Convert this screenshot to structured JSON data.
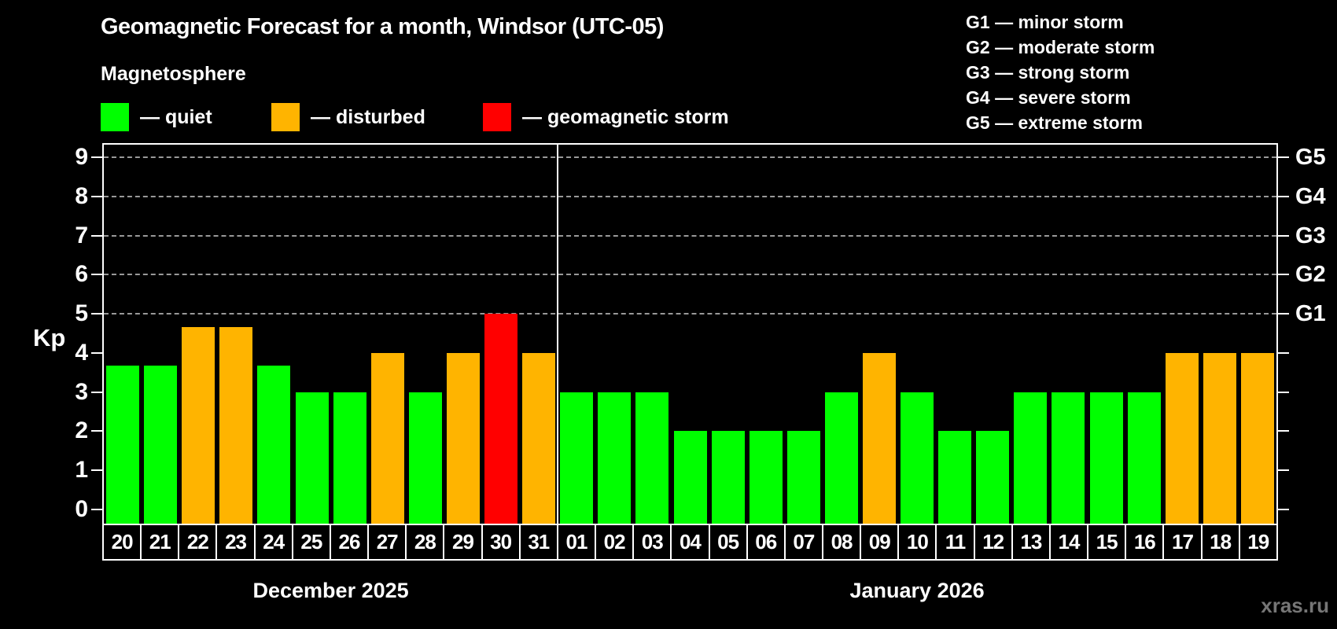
{
  "title": "Geomagnetic Forecast for a month, Windsor (UTC-05)",
  "subtitle": "Magnetosphere",
  "legend": {
    "items": [
      {
        "key": "quiet",
        "label": "— quiet",
        "color": "#00ff00"
      },
      {
        "key": "disturbed",
        "label": "— disturbed",
        "color": "#ffb400"
      },
      {
        "key": "storm",
        "label": "— geomagnetic storm",
        "color": "#ff0000"
      }
    ]
  },
  "g_legend": [
    "G1 — minor storm",
    "G2 — moderate storm",
    "G3 — strong storm",
    "G4 — severe storm",
    "G5 — extreme storm"
  ],
  "axes": {
    "y_label": "Kp",
    "y_ticks": [
      0,
      1,
      2,
      3,
      4,
      5,
      6,
      7,
      8,
      9
    ],
    "right_scale": [
      {
        "label": "G1",
        "kp": 5
      },
      {
        "label": "G2",
        "kp": 6
      },
      {
        "label": "G3",
        "kp": 7
      },
      {
        "label": "G4",
        "kp": 8
      },
      {
        "label": "G5",
        "kp": 9
      }
    ]
  },
  "watermark": "xras.ru",
  "chart_data": {
    "type": "bar",
    "title": "Geomagnetic Forecast for a month, Windsor (UTC-05)",
    "xlabel": "",
    "ylabel": "Kp",
    "ylim": [
      0,
      9
    ],
    "grid_levels": [
      5,
      6,
      7,
      8,
      9
    ],
    "legend_position": "top-left",
    "colors": {
      "quiet": "#00ff00",
      "disturbed": "#ffb400",
      "storm": "#ff0000"
    },
    "groups": [
      {
        "label": "December 2025",
        "days": [
          {
            "day": "20",
            "kp": 3.67,
            "status": "quiet"
          },
          {
            "day": "21",
            "kp": 3.67,
            "status": "quiet"
          },
          {
            "day": "22",
            "kp": 4.67,
            "status": "disturbed"
          },
          {
            "day": "23",
            "kp": 4.67,
            "status": "disturbed"
          },
          {
            "day": "24",
            "kp": 3.67,
            "status": "quiet"
          },
          {
            "day": "25",
            "kp": 3,
            "status": "quiet"
          },
          {
            "day": "26",
            "kp": 3,
            "status": "quiet"
          },
          {
            "day": "27",
            "kp": 4,
            "status": "disturbed"
          },
          {
            "day": "28",
            "kp": 3,
            "status": "quiet"
          },
          {
            "day": "29",
            "kp": 4,
            "status": "disturbed"
          },
          {
            "day": "30",
            "kp": 5,
            "status": "storm"
          },
          {
            "day": "31",
            "kp": 4,
            "status": "disturbed"
          }
        ]
      },
      {
        "label": "January 2026",
        "days": [
          {
            "day": "01",
            "kp": 3,
            "status": "quiet"
          },
          {
            "day": "02",
            "kp": 3,
            "status": "quiet"
          },
          {
            "day": "03",
            "kp": 3,
            "status": "quiet"
          },
          {
            "day": "04",
            "kp": 2,
            "status": "quiet"
          },
          {
            "day": "05",
            "kp": 2,
            "status": "quiet"
          },
          {
            "day": "06",
            "kp": 2,
            "status": "quiet"
          },
          {
            "day": "07",
            "kp": 2,
            "status": "quiet"
          },
          {
            "day": "08",
            "kp": 3,
            "status": "quiet"
          },
          {
            "day": "09",
            "kp": 4,
            "status": "disturbed"
          },
          {
            "day": "10",
            "kp": 3,
            "status": "quiet"
          },
          {
            "day": "11",
            "kp": 2,
            "status": "quiet"
          },
          {
            "day": "12",
            "kp": 2,
            "status": "quiet"
          },
          {
            "day": "13",
            "kp": 3,
            "status": "quiet"
          },
          {
            "day": "14",
            "kp": 3,
            "status": "quiet"
          },
          {
            "day": "15",
            "kp": 3,
            "status": "quiet"
          },
          {
            "day": "16",
            "kp": 3,
            "status": "quiet"
          },
          {
            "day": "17",
            "kp": 4,
            "status": "disturbed"
          },
          {
            "day": "18",
            "kp": 4,
            "status": "disturbed"
          },
          {
            "day": "19",
            "kp": 4,
            "status": "disturbed"
          }
        ]
      }
    ]
  }
}
